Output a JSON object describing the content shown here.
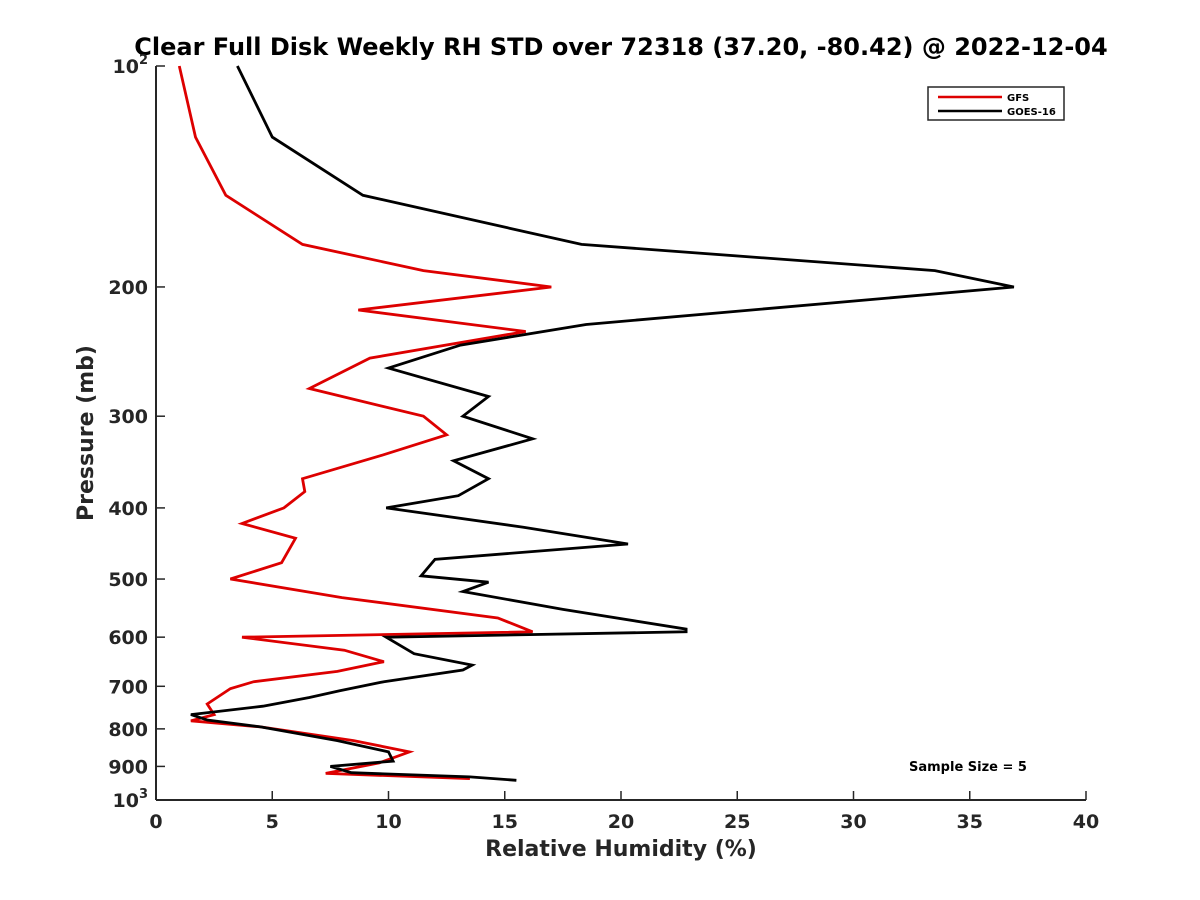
{
  "chart_data": {
    "type": "line",
    "title": "Clear Full Disk Weekly RH STD over 72318 (37.20, -80.42) @ 2022-12-04",
    "xlabel": "Relative Humidity (%)",
    "ylabel": "Pressure (mb)",
    "xlim": [
      0,
      40
    ],
    "ylim": [
      100,
      1000
    ],
    "y_scale": "log",
    "y_reversed": true,
    "x_ticks": [
      "0",
      "5",
      "10",
      "15",
      "20",
      "25",
      "30",
      "35",
      "40"
    ],
    "y_ticks": [
      {
        "value": 100,
        "base": "10",
        "exp": "2"
      },
      {
        "value": 200,
        "label": "200"
      },
      {
        "value": 300,
        "label": "300"
      },
      {
        "value": 400,
        "label": "400"
      },
      {
        "value": 500,
        "label": "500"
      },
      {
        "value": 600,
        "label": "600"
      },
      {
        "value": 700,
        "label": "700"
      },
      {
        "value": 800,
        "label": "800"
      },
      {
        "value": 900,
        "label": "900"
      },
      {
        "value": 1000,
        "base": "10",
        "exp": "3"
      }
    ],
    "legend": {
      "position": "top-right",
      "entries": [
        "GFS",
        "GOES-16"
      ]
    },
    "annotation": "Sample Size = 5",
    "grid": false,
    "series": [
      {
        "name": "GFS",
        "color": "#dd0000",
        "points": [
          [
            1.0,
            100
          ],
          [
            1.7,
            125
          ],
          [
            3.0,
            150
          ],
          [
            6.3,
            175
          ],
          [
            11.5,
            190
          ],
          [
            17.0,
            200
          ],
          [
            8.7,
            215
          ],
          [
            15.9,
            230
          ],
          [
            9.2,
            250
          ],
          [
            6.6,
            275
          ],
          [
            11.5,
            300
          ],
          [
            12.5,
            318
          ],
          [
            9.6,
            340
          ],
          [
            6.3,
            365
          ],
          [
            6.4,
            380
          ],
          [
            5.5,
            400
          ],
          [
            3.7,
            420
          ],
          [
            6.0,
            440
          ],
          [
            5.4,
            475
          ],
          [
            3.2,
            500
          ],
          [
            8.0,
            530
          ],
          [
            14.7,
            565
          ],
          [
            16.2,
            590
          ],
          [
            3.7,
            600
          ],
          [
            8.1,
            625
          ],
          [
            9.8,
            648
          ],
          [
            7.8,
            668
          ],
          [
            4.2,
            690
          ],
          [
            3.2,
            705
          ],
          [
            2.2,
            740
          ],
          [
            2.5,
            765
          ],
          [
            1.5,
            780
          ],
          [
            4.5,
            795
          ],
          [
            8.5,
            830
          ],
          [
            10.9,
            860
          ],
          [
            9.6,
            890
          ],
          [
            7.3,
            920
          ],
          [
            13.5,
            935
          ]
        ]
      },
      {
        "name": "GOES-16",
        "color": "#000000",
        "points": [
          [
            3.5,
            100
          ],
          [
            5.0,
            125
          ],
          [
            8.9,
            150
          ],
          [
            18.3,
            175
          ],
          [
            33.5,
            190
          ],
          [
            36.9,
            200
          ],
          [
            18.5,
            225
          ],
          [
            13.1,
            240
          ],
          [
            10.0,
            258
          ],
          [
            14.3,
            282
          ],
          [
            13.2,
            300
          ],
          [
            16.2,
            322
          ],
          [
            12.8,
            345
          ],
          [
            14.3,
            365
          ],
          [
            13.0,
            385
          ],
          [
            9.9,
            400
          ],
          [
            15.8,
            425
          ],
          [
            20.3,
            448
          ],
          [
            12.0,
            470
          ],
          [
            11.4,
            495
          ],
          [
            14.3,
            505
          ],
          [
            13.2,
            520
          ],
          [
            17.5,
            550
          ],
          [
            22.8,
            585
          ],
          [
            22.8,
            590
          ],
          [
            9.9,
            600
          ],
          [
            11.1,
            632
          ],
          [
            13.6,
            655
          ],
          [
            13.2,
            665
          ],
          [
            9.8,
            690
          ],
          [
            7.9,
            710
          ],
          [
            6.6,
            725
          ],
          [
            4.6,
            745
          ],
          [
            1.5,
            765
          ],
          [
            2.2,
            778
          ],
          [
            4.5,
            795
          ],
          [
            7.8,
            830
          ],
          [
            10.0,
            860
          ],
          [
            10.2,
            885
          ],
          [
            7.5,
            900
          ],
          [
            8.4,
            918
          ],
          [
            13.5,
            930
          ],
          [
            15.5,
            940
          ]
        ]
      }
    ]
  }
}
